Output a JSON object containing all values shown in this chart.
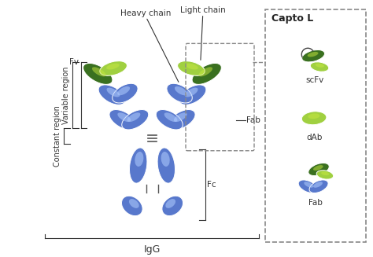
{
  "bg_color": "#ffffff",
  "blue_base": "#5B7FCC",
  "blue_hi": "#A8C8F0",
  "green_dark": "#3A7020",
  "green_mid": "#4E9A28",
  "green_light": "#A0D040",
  "green_bright": "#C8E840",
  "gray_line": "#555555",
  "label_color": "#333333",
  "capto_title": "Capto L",
  "label_fv": "Fv",
  "label_variable": "Variable region",
  "label_constant": "Constant region",
  "label_heavy": "Heavy chain",
  "label_light": "Light chain",
  "label_fab": "Fab",
  "label_fc": "Fc",
  "label_igg": "IgG",
  "label_scfv": "scFv",
  "label_dab": "dAb",
  "label_fab2": "Fab",
  "fontsize_main": 7.5,
  "fontsize_igg": 9,
  "fontsize_capto": 9
}
